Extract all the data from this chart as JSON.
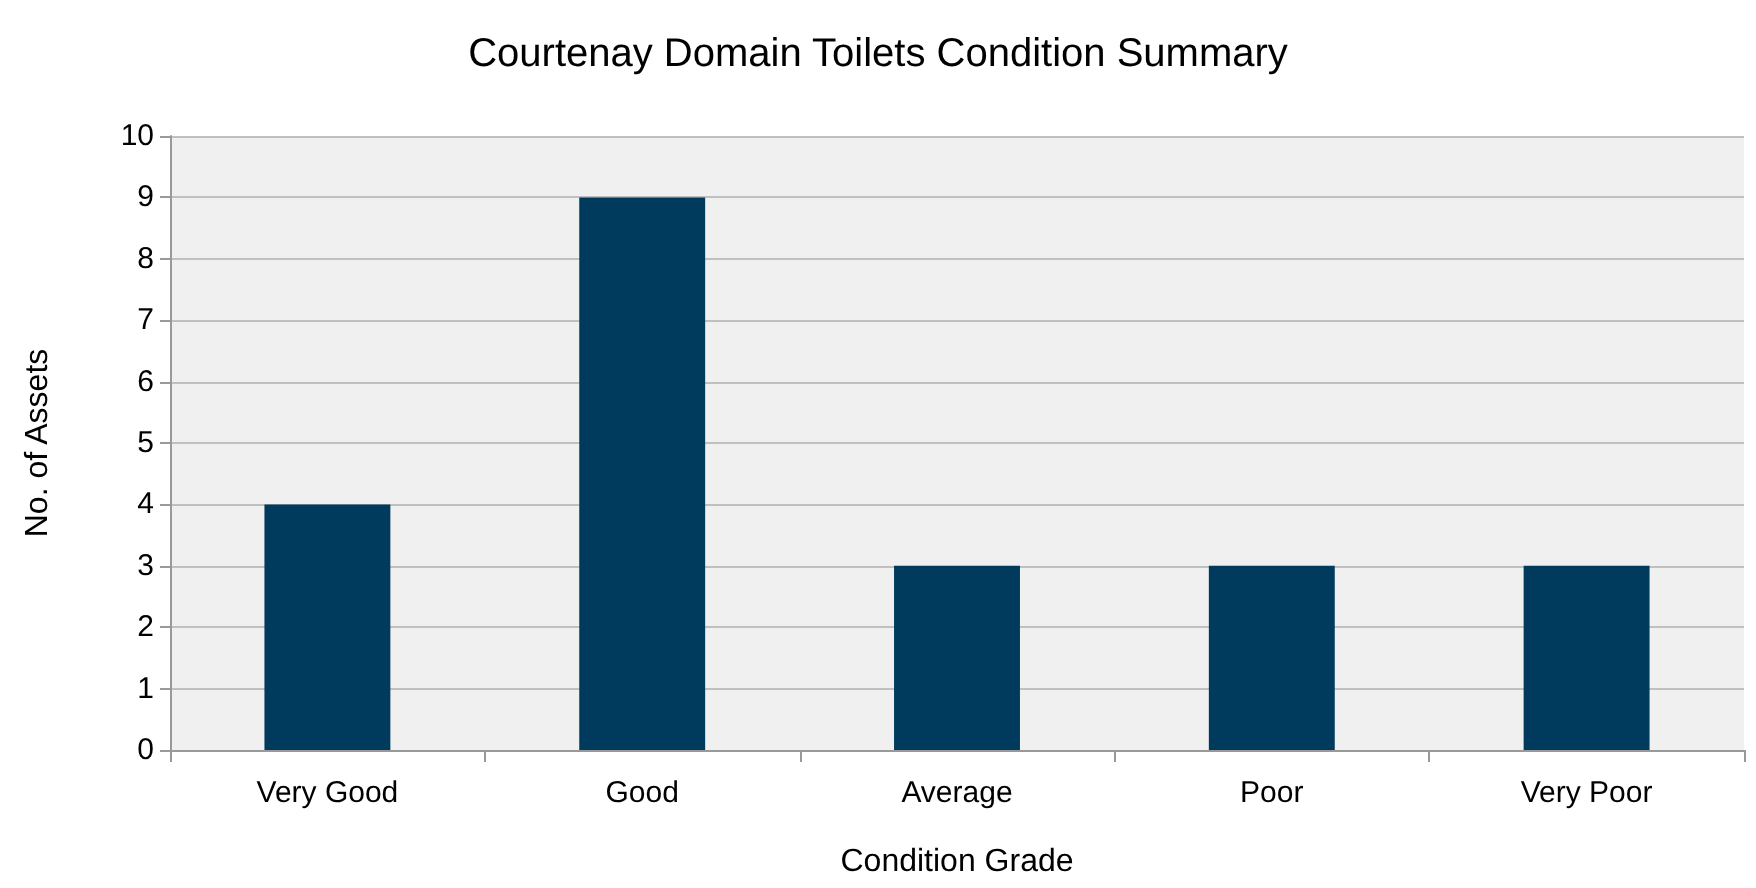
{
  "chart_data": {
    "type": "bar",
    "title": "Courtenay Domain Toilets Condition Summary",
    "xlabel": "Condition Grade",
    "ylabel": "No. of Assets",
    "categories": [
      "Very Good",
      "Good",
      "Average",
      "Poor",
      "Very Poor"
    ],
    "values": [
      4,
      9,
      3,
      3,
      3
    ],
    "color": "#003a5c",
    "ylim": [
      0,
      10
    ],
    "yticks": [
      0,
      1,
      2,
      3,
      4,
      5,
      6,
      7,
      8,
      9,
      10
    ],
    "grid": "y"
  }
}
